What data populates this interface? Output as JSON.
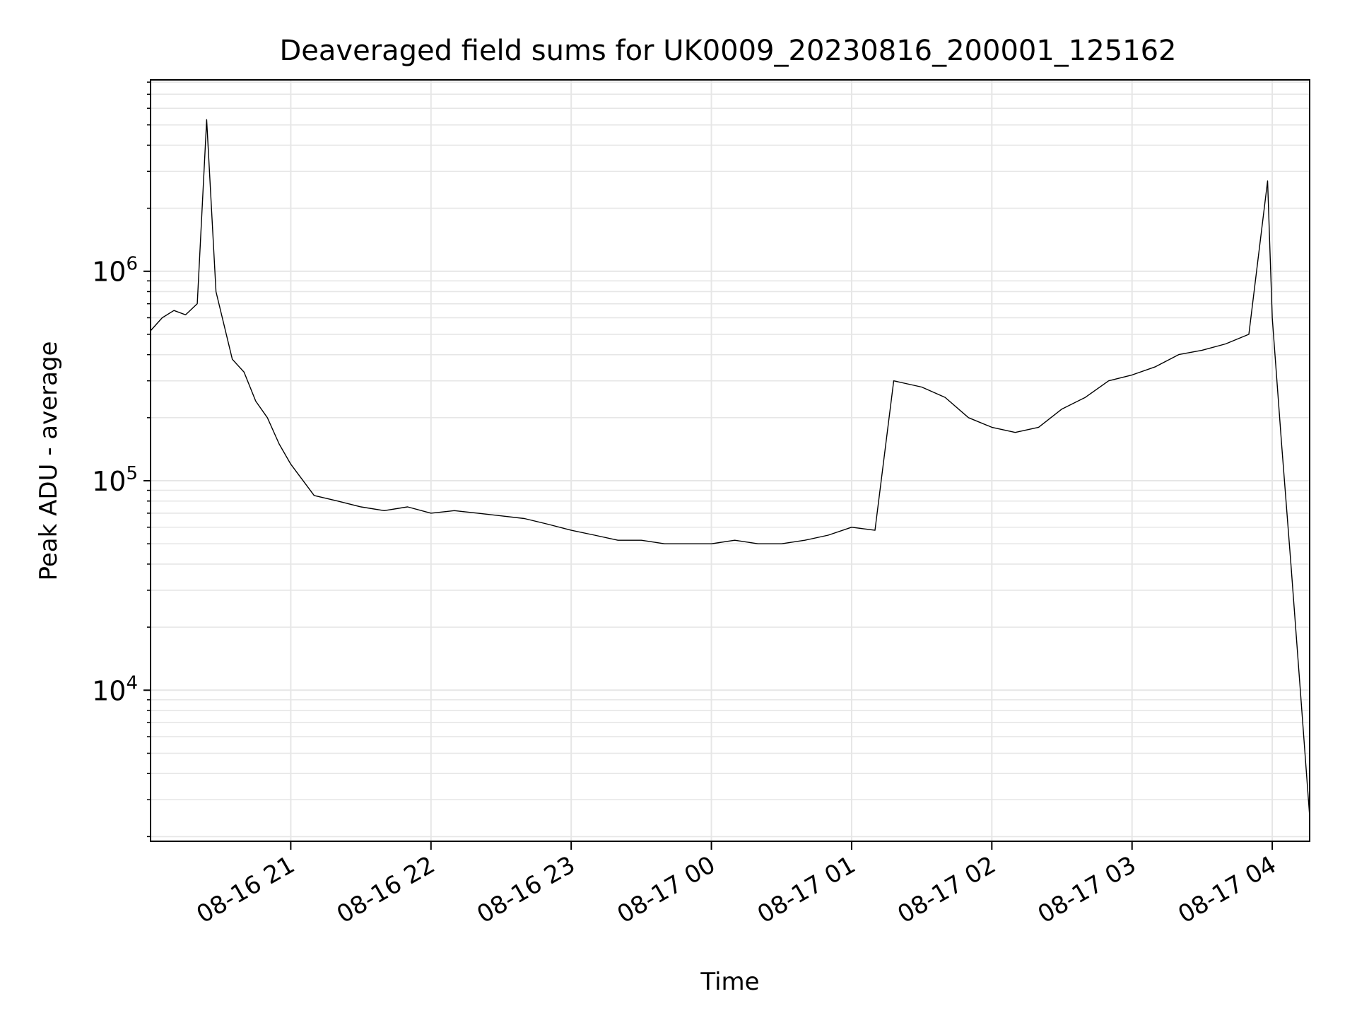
{
  "chart_data": {
    "type": "line",
    "title": "Deaveraged field sums for UK0009_20230816_200001_125162",
    "xlabel": "Time",
    "ylabel": "Peak ADU - average",
    "yscale": "log",
    "ylim": [
      1900,
      8200000
    ],
    "xlim": [
      "2023-08-16 20:00",
      "2023-08-17 04:16"
    ],
    "grid": true,
    "line_color": "#000000",
    "grid_color": "#e6e6e6",
    "x_ticks": [
      {
        "t": "2023-08-16 21:00",
        "label": "08-16 21"
      },
      {
        "t": "2023-08-16 22:00",
        "label": "08-16 22"
      },
      {
        "t": "2023-08-16 23:00",
        "label": "08-16 23"
      },
      {
        "t": "2023-08-17 00:00",
        "label": "08-17 00"
      },
      {
        "t": "2023-08-17 01:00",
        "label": "08-17 01"
      },
      {
        "t": "2023-08-17 02:00",
        "label": "08-17 02"
      },
      {
        "t": "2023-08-17 03:00",
        "label": "08-17 03"
      },
      {
        "t": "2023-08-17 04:00",
        "label": "08-17 04"
      }
    ],
    "y_ticks": [
      {
        "value": 10000,
        "base": "10",
        "exp": "4"
      },
      {
        "value": 100000,
        "base": "10",
        "exp": "5"
      },
      {
        "value": 1000000,
        "base": "10",
        "exp": "6"
      }
    ],
    "series": [
      {
        "points": [
          [
            "2023-08-16 20:00",
            520000
          ],
          [
            "2023-08-16 20:05",
            600000
          ],
          [
            "2023-08-16 20:10",
            650000
          ],
          [
            "2023-08-16 20:15",
            620000
          ],
          [
            "2023-08-16 20:20",
            700000
          ],
          [
            "2023-08-16 20:24",
            5300000
          ],
          [
            "2023-08-16 20:28",
            800000
          ],
          [
            "2023-08-16 20:35",
            380000
          ],
          [
            "2023-08-16 20:40",
            330000
          ],
          [
            "2023-08-16 20:45",
            240000
          ],
          [
            "2023-08-16 20:50",
            200000
          ],
          [
            "2023-08-16 20:55",
            150000
          ],
          [
            "2023-08-16 21:00",
            120000
          ],
          [
            "2023-08-16 21:10",
            85000
          ],
          [
            "2023-08-16 21:20",
            80000
          ],
          [
            "2023-08-16 21:30",
            75000
          ],
          [
            "2023-08-16 21:40",
            72000
          ],
          [
            "2023-08-16 21:50",
            75000
          ],
          [
            "2023-08-16 22:00",
            70000
          ],
          [
            "2023-08-16 22:10",
            72000
          ],
          [
            "2023-08-16 22:20",
            70000
          ],
          [
            "2023-08-16 22:30",
            68000
          ],
          [
            "2023-08-16 22:40",
            66000
          ],
          [
            "2023-08-16 22:50",
            62000
          ],
          [
            "2023-08-16 23:00",
            58000
          ],
          [
            "2023-08-16 23:10",
            55000
          ],
          [
            "2023-08-16 23:20",
            52000
          ],
          [
            "2023-08-16 23:30",
            52000
          ],
          [
            "2023-08-16 23:40",
            50000
          ],
          [
            "2023-08-16 23:50",
            50000
          ],
          [
            "2023-08-17 00:00",
            50000
          ],
          [
            "2023-08-17 00:10",
            52000
          ],
          [
            "2023-08-17 00:20",
            50000
          ],
          [
            "2023-08-17 00:30",
            50000
          ],
          [
            "2023-08-17 00:40",
            52000
          ],
          [
            "2023-08-17 00:50",
            55000
          ],
          [
            "2023-08-17 01:00",
            60000
          ],
          [
            "2023-08-17 01:10",
            58000
          ],
          [
            "2023-08-17 01:18",
            300000
          ],
          [
            "2023-08-17 01:30",
            280000
          ],
          [
            "2023-08-17 01:40",
            250000
          ],
          [
            "2023-08-17 01:50",
            200000
          ],
          [
            "2023-08-17 02:00",
            180000
          ],
          [
            "2023-08-17 02:10",
            170000
          ],
          [
            "2023-08-17 02:20",
            180000
          ],
          [
            "2023-08-17 02:30",
            220000
          ],
          [
            "2023-08-17 02:40",
            250000
          ],
          [
            "2023-08-17 02:50",
            300000
          ],
          [
            "2023-08-17 03:00",
            320000
          ],
          [
            "2023-08-17 03:10",
            350000
          ],
          [
            "2023-08-17 03:20",
            400000
          ],
          [
            "2023-08-17 03:30",
            420000
          ],
          [
            "2023-08-17 03:40",
            450000
          ],
          [
            "2023-08-17 03:50",
            500000
          ],
          [
            "2023-08-17 03:58",
            2700000
          ],
          [
            "2023-08-17 04:00",
            600000
          ],
          [
            "2023-08-17 04:04",
            150000
          ],
          [
            "2023-08-17 04:08",
            40000
          ],
          [
            "2023-08-17 04:12",
            10000
          ],
          [
            "2023-08-17 04:16",
            2500
          ]
        ]
      }
    ]
  }
}
